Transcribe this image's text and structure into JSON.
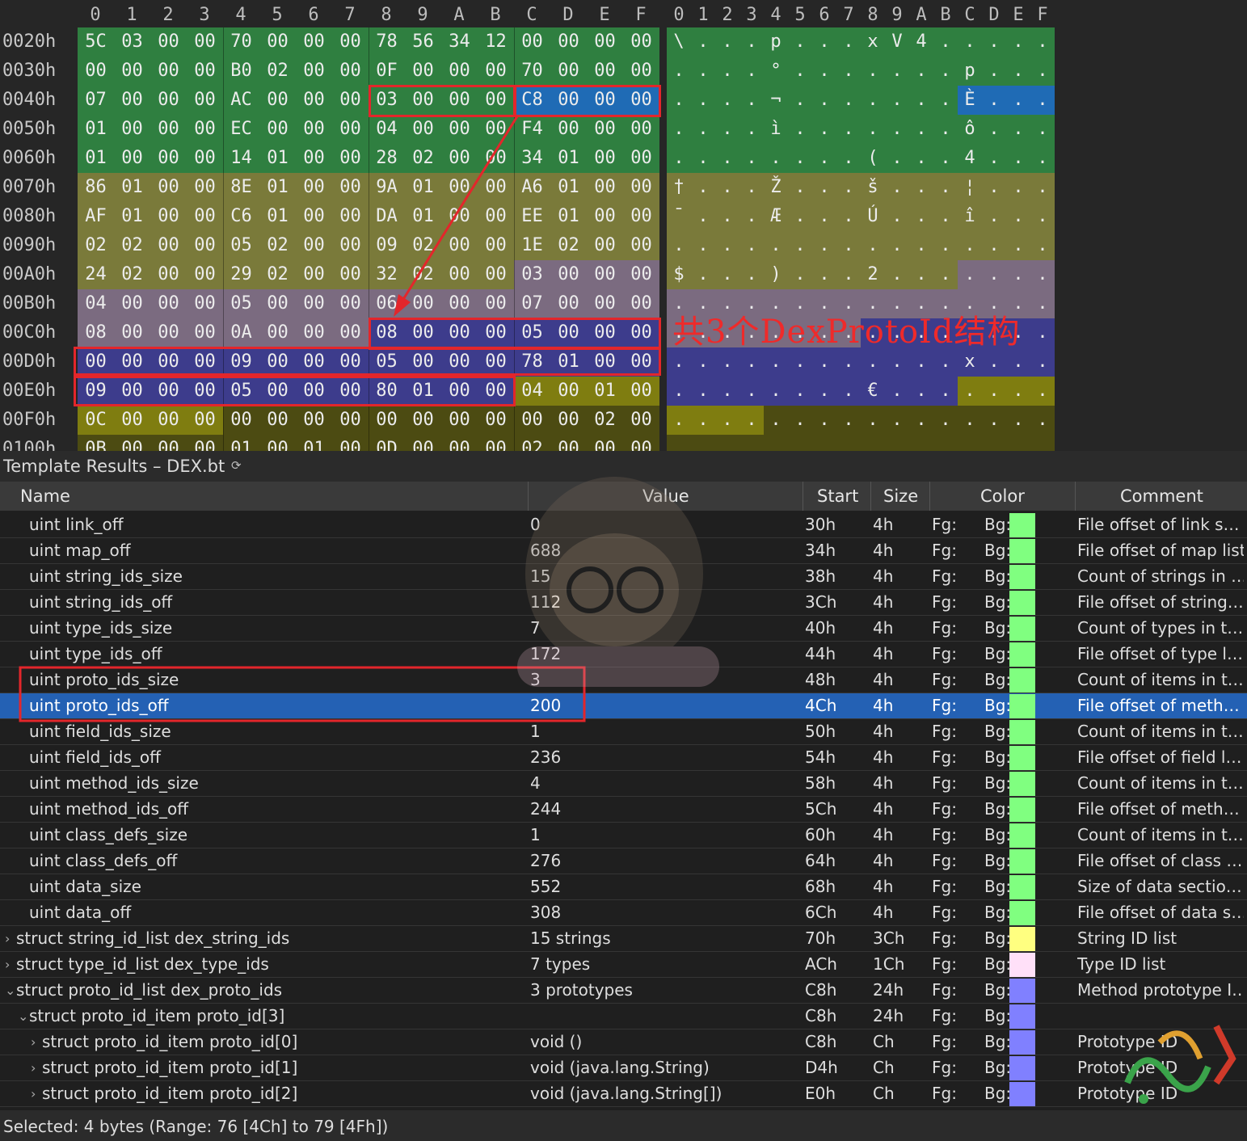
{
  "hex": {
    "columns": [
      "0",
      "1",
      "2",
      "3",
      "4",
      "5",
      "6",
      "7",
      "8",
      "9",
      "A",
      "B",
      "C",
      "D",
      "E",
      "F"
    ],
    "rows": [
      {
        "addr": "0020h",
        "bytes": [
          "5C",
          "03",
          "00",
          "00",
          "70",
          "00",
          "00",
          "00",
          "78",
          "56",
          "34",
          "12",
          "00",
          "00",
          "00",
          "00"
        ],
        "ascii": [
          "\\",
          ".",
          ".",
          ".",
          "p",
          ".",
          ".",
          ".",
          "x",
          "V",
          "4",
          ".",
          ".",
          ".",
          ".",
          "."
        ]
      },
      {
        "addr": "0030h",
        "bytes": [
          "00",
          "00",
          "00",
          "00",
          "B0",
          "02",
          "00",
          "00",
          "0F",
          "00",
          "00",
          "00",
          "70",
          "00",
          "00",
          "00"
        ],
        "ascii": [
          ".",
          ".",
          ".",
          ".",
          "°",
          ".",
          ".",
          ".",
          ".",
          ".",
          ".",
          ".",
          "p",
          ".",
          ".",
          "."
        ]
      },
      {
        "addr": "0040h",
        "bytes": [
          "07",
          "00",
          "00",
          "00",
          "AC",
          "00",
          "00",
          "00",
          "03",
          "00",
          "00",
          "00",
          "C8",
          "00",
          "00",
          "00"
        ],
        "ascii": [
          ".",
          ".",
          ".",
          ".",
          "¬",
          ".",
          ".",
          ".",
          ".",
          ".",
          ".",
          ".",
          "È",
          ".",
          ".",
          "."
        ]
      },
      {
        "addr": "0050h",
        "bytes": [
          "01",
          "00",
          "00",
          "00",
          "EC",
          "00",
          "00",
          "00",
          "04",
          "00",
          "00",
          "00",
          "F4",
          "00",
          "00",
          "00"
        ],
        "ascii": [
          ".",
          ".",
          ".",
          ".",
          "ì",
          ".",
          ".",
          ".",
          ".",
          ".",
          ".",
          ".",
          "ô",
          ".",
          ".",
          "."
        ]
      },
      {
        "addr": "0060h",
        "bytes": [
          "01",
          "00",
          "00",
          "00",
          "14",
          "01",
          "00",
          "00",
          "28",
          "02",
          "00",
          "00",
          "34",
          "01",
          "00",
          "00"
        ],
        "ascii": [
          ".",
          ".",
          ".",
          ".",
          ".",
          ".",
          ".",
          ".",
          "(",
          ".",
          ".",
          ".",
          "4",
          ".",
          ".",
          "."
        ]
      },
      {
        "addr": "0070h",
        "bytes": [
          "86",
          "01",
          "00",
          "00",
          "8E",
          "01",
          "00",
          "00",
          "9A",
          "01",
          "00",
          "00",
          "A6",
          "01",
          "00",
          "00"
        ],
        "ascii": [
          "†",
          ".",
          ".",
          ".",
          "Ž",
          ".",
          ".",
          ".",
          "š",
          ".",
          ".",
          ".",
          "¦",
          ".",
          ".",
          "."
        ]
      },
      {
        "addr": "0080h",
        "bytes": [
          "AF",
          "01",
          "00",
          "00",
          "C6",
          "01",
          "00",
          "00",
          "DA",
          "01",
          "00",
          "00",
          "EE",
          "01",
          "00",
          "00"
        ],
        "ascii": [
          "¯",
          ".",
          ".",
          ".",
          "Æ",
          ".",
          ".",
          ".",
          "Ú",
          ".",
          ".",
          ".",
          "î",
          ".",
          ".",
          "."
        ]
      },
      {
        "addr": "0090h",
        "bytes": [
          "02",
          "02",
          "00",
          "00",
          "05",
          "02",
          "00",
          "00",
          "09",
          "02",
          "00",
          "00",
          "1E",
          "02",
          "00",
          "00"
        ],
        "ascii": [
          ".",
          ".",
          ".",
          ".",
          ".",
          ".",
          ".",
          ".",
          ".",
          ".",
          ".",
          ".",
          ".",
          ".",
          ".",
          "."
        ]
      },
      {
        "addr": "00A0h",
        "bytes": [
          "24",
          "02",
          "00",
          "00",
          "29",
          "02",
          "00",
          "00",
          "32",
          "02",
          "00",
          "00",
          "03",
          "00",
          "00",
          "00"
        ],
        "ascii": [
          "$",
          ".",
          ".",
          ".",
          ")",
          ".",
          ".",
          ".",
          "2",
          ".",
          ".",
          ".",
          ".",
          ".",
          ".",
          "."
        ]
      },
      {
        "addr": "00B0h",
        "bytes": [
          "04",
          "00",
          "00",
          "00",
          "05",
          "00",
          "00",
          "00",
          "06",
          "00",
          "00",
          "00",
          "07",
          "00",
          "00",
          "00"
        ],
        "ascii": [
          ".",
          ".",
          ".",
          ".",
          ".",
          ".",
          ".",
          ".",
          ".",
          ".",
          ".",
          ".",
          ".",
          ".",
          ".",
          "."
        ]
      },
      {
        "addr": "00C0h",
        "bytes": [
          "08",
          "00",
          "00",
          "00",
          "0A",
          "00",
          "00",
          "00",
          "08",
          "00",
          "00",
          "00",
          "05",
          "00",
          "00",
          "00"
        ],
        "ascii": [
          ".",
          ".",
          ".",
          ".",
          ".",
          ".",
          ".",
          ".",
          ".",
          ".",
          ".",
          ".",
          ".",
          ".",
          ".",
          "."
        ]
      },
      {
        "addr": "00D0h",
        "bytes": [
          "00",
          "00",
          "00",
          "00",
          "09",
          "00",
          "00",
          "00",
          "05",
          "00",
          "00",
          "00",
          "78",
          "01",
          "00",
          "00"
        ],
        "ascii": [
          ".",
          ".",
          ".",
          ".",
          ".",
          ".",
          ".",
          ".",
          ".",
          ".",
          ".",
          ".",
          "x",
          ".",
          ".",
          "."
        ]
      },
      {
        "addr": "00E0h",
        "bytes": [
          "09",
          "00",
          "00",
          "00",
          "05",
          "00",
          "00",
          "00",
          "80",
          "01",
          "00",
          "00",
          "04",
          "00",
          "01",
          "00"
        ],
        "ascii": [
          ".",
          ".",
          ".",
          ".",
          ".",
          ".",
          ".",
          ".",
          "€",
          ".",
          ".",
          ".",
          ".",
          ".",
          ".",
          "."
        ]
      },
      {
        "addr": "00F0h",
        "bytes": [
          "0C",
          "00",
          "00",
          "00",
          "00",
          "00",
          "00",
          "00",
          "00",
          "00",
          "00",
          "00",
          "00",
          "00",
          "02",
          "00"
        ],
        "ascii": [
          ".",
          ".",
          ".",
          ".",
          ".",
          ".",
          ".",
          ".",
          ".",
          ".",
          ".",
          ".",
          ".",
          ".",
          ".",
          "."
        ]
      },
      {
        "addr": "0100h",
        "bytes": [
          "0B",
          "00",
          "00",
          "00",
          "01",
          "00",
          "01",
          "00",
          "0D",
          "00",
          "00",
          "00",
          "02",
          "00",
          "00",
          "00"
        ],
        "ascii": [
          ".",
          ".",
          ".",
          ".",
          ".",
          ".",
          ".",
          ".",
          ".",
          ".",
          ".",
          ".",
          ".",
          ".",
          ".",
          "."
        ]
      }
    ],
    "annotation": "共3个DexProtoId结构",
    "colors": {
      "header_green": "#2f7f40",
      "string_ids_olive": "#7a7a3a",
      "type_ids_mauve": "#7b6b80",
      "proto_ids_blue": "#3d3c8c",
      "field_ids_olive": "#7f7d10",
      "method_ids_dark": "#4c4b12",
      "selection_blue": "#1f6bb5",
      "highlight_red": "#e3262b"
    }
  },
  "template": {
    "title": "Template Results – DEX.bt",
    "refresh_icon": "refresh-icon",
    "columns": [
      "Name",
      "Value",
      "Start",
      "Size",
      "Color",
      "Comment"
    ],
    "rows": [
      {
        "name": "uint link_off",
        "value": "0",
        "start": "30h",
        "size": "4h",
        "fg": "Fg:",
        "bg": "Bg:",
        "color": "#80ff80",
        "comment": "File offset of link s…",
        "indent": 1
      },
      {
        "name": "uint map_off",
        "value": "688",
        "start": "34h",
        "size": "4h",
        "fg": "Fg:",
        "bg": "Bg:",
        "color": "#80ff80",
        "comment": "File offset of map list",
        "indent": 1
      },
      {
        "name": "uint string_ids_size",
        "value": "15",
        "start": "38h",
        "size": "4h",
        "fg": "Fg:",
        "bg": "Bg:",
        "color": "#80ff80",
        "comment": "Count of strings in …",
        "indent": 1
      },
      {
        "name": "uint string_ids_off",
        "value": "112",
        "start": "3Ch",
        "size": "4h",
        "fg": "Fg:",
        "bg": "Bg:",
        "color": "#80ff80",
        "comment": "File offset of string…",
        "indent": 1
      },
      {
        "name": "uint type_ids_size",
        "value": "7",
        "start": "40h",
        "size": "4h",
        "fg": "Fg:",
        "bg": "Bg:",
        "color": "#80ff80",
        "comment": "Count of types in t…",
        "indent": 1
      },
      {
        "name": "uint type_ids_off",
        "value": "172",
        "start": "44h",
        "size": "4h",
        "fg": "Fg:",
        "bg": "Bg:",
        "color": "#80ff80",
        "comment": "File offset of type l…",
        "indent": 1
      },
      {
        "name": "uint proto_ids_size",
        "value": "3",
        "start": "48h",
        "size": "4h",
        "fg": "Fg:",
        "bg": "Bg:",
        "color": "#80ff80",
        "comment": "Count of items in t…",
        "indent": 1
      },
      {
        "name": "uint proto_ids_off",
        "value": "200",
        "start": "4Ch",
        "size": "4h",
        "fg": "Fg:",
        "bg": "Bg:",
        "color": "#80ff80",
        "comment": "File offset of meth…",
        "indent": 1,
        "selected": true
      },
      {
        "name": "uint field_ids_size",
        "value": "1",
        "start": "50h",
        "size": "4h",
        "fg": "Fg:",
        "bg": "Bg:",
        "color": "#80ff80",
        "comment": "Count of items in t…",
        "indent": 1
      },
      {
        "name": "uint field_ids_off",
        "value": "236",
        "start": "54h",
        "size": "4h",
        "fg": "Fg:",
        "bg": "Bg:",
        "color": "#80ff80",
        "comment": "File offset of field l…",
        "indent": 1
      },
      {
        "name": "uint method_ids_size",
        "value": "4",
        "start": "58h",
        "size": "4h",
        "fg": "Fg:",
        "bg": "Bg:",
        "color": "#80ff80",
        "comment": "Count of items in t…",
        "indent": 1
      },
      {
        "name": "uint method_ids_off",
        "value": "244",
        "start": "5Ch",
        "size": "4h",
        "fg": "Fg:",
        "bg": "Bg:",
        "color": "#80ff80",
        "comment": "File offset of meth…",
        "indent": 1
      },
      {
        "name": "uint class_defs_size",
        "value": "1",
        "start": "60h",
        "size": "4h",
        "fg": "Fg:",
        "bg": "Bg:",
        "color": "#80ff80",
        "comment": "Count of items in t…",
        "indent": 1
      },
      {
        "name": "uint class_defs_off",
        "value": "276",
        "start": "64h",
        "size": "4h",
        "fg": "Fg:",
        "bg": "Bg:",
        "color": "#80ff80",
        "comment": "File offset of class …",
        "indent": 1
      },
      {
        "name": "uint data_size",
        "value": "552",
        "start": "68h",
        "size": "4h",
        "fg": "Fg:",
        "bg": "Bg:",
        "color": "#80ff80",
        "comment": "Size of data sectio…",
        "indent": 1
      },
      {
        "name": "uint data_off",
        "value": "308",
        "start": "6Ch",
        "size": "4h",
        "fg": "Fg:",
        "bg": "Bg:",
        "color": "#80ff80",
        "comment": "File offset of data s…",
        "indent": 1
      },
      {
        "name": "struct string_id_list dex_string_ids",
        "value": "15 strings",
        "start": "70h",
        "size": "3Ch",
        "fg": "Fg:",
        "bg": "Bg:",
        "color": "#ffff80",
        "comment": "String ID list",
        "indent": 0,
        "arrow": "›"
      },
      {
        "name": "struct type_id_list dex_type_ids",
        "value": "7 types",
        "start": "ACh",
        "size": "1Ch",
        "fg": "Fg:",
        "bg": "Bg:",
        "color": "#ffe0f8",
        "comment": "Type ID list",
        "indent": 0,
        "arrow": "›"
      },
      {
        "name": "struct proto_id_list dex_proto_ids",
        "value": "3 prototypes",
        "start": "C8h",
        "size": "24h",
        "fg": "Fg:",
        "bg": "Bg:",
        "color": "#8080ff",
        "comment": "Method prototype I…",
        "indent": 0,
        "arrow": "⌄"
      },
      {
        "name": "struct proto_id_item proto_id[3]",
        "value": "",
        "start": "C8h",
        "size": "24h",
        "fg": "Fg:",
        "bg": "Bg:",
        "color": "#8080ff",
        "comment": "",
        "indent": 1,
        "arrow": "⌄"
      },
      {
        "name": "struct proto_id_item proto_id[0]",
        "value": "void ()",
        "start": "C8h",
        "size": "Ch",
        "fg": "Fg:",
        "bg": "Bg:",
        "color": "#8080ff",
        "comment": "Prototype ID",
        "indent": 2,
        "arrow": "›"
      },
      {
        "name": "struct proto_id_item proto_id[1]",
        "value": "void (java.lang.String)",
        "start": "D4h",
        "size": "Ch",
        "fg": "Fg:",
        "bg": "Bg:",
        "color": "#8080ff",
        "comment": "Prototype ID",
        "indent": 2,
        "arrow": "›"
      },
      {
        "name": "struct proto_id_item proto_id[2]",
        "value": "void (java.lang.String[])",
        "start": "E0h",
        "size": "Ch",
        "fg": "Fg:",
        "bg": "Bg:",
        "color": "#8080ff",
        "comment": "Prototype ID",
        "indent": 2,
        "arrow": "›"
      }
    ]
  },
  "status": "Selected: 4 bytes (Range: 76 [4Ch] to 79 [4Fh])"
}
